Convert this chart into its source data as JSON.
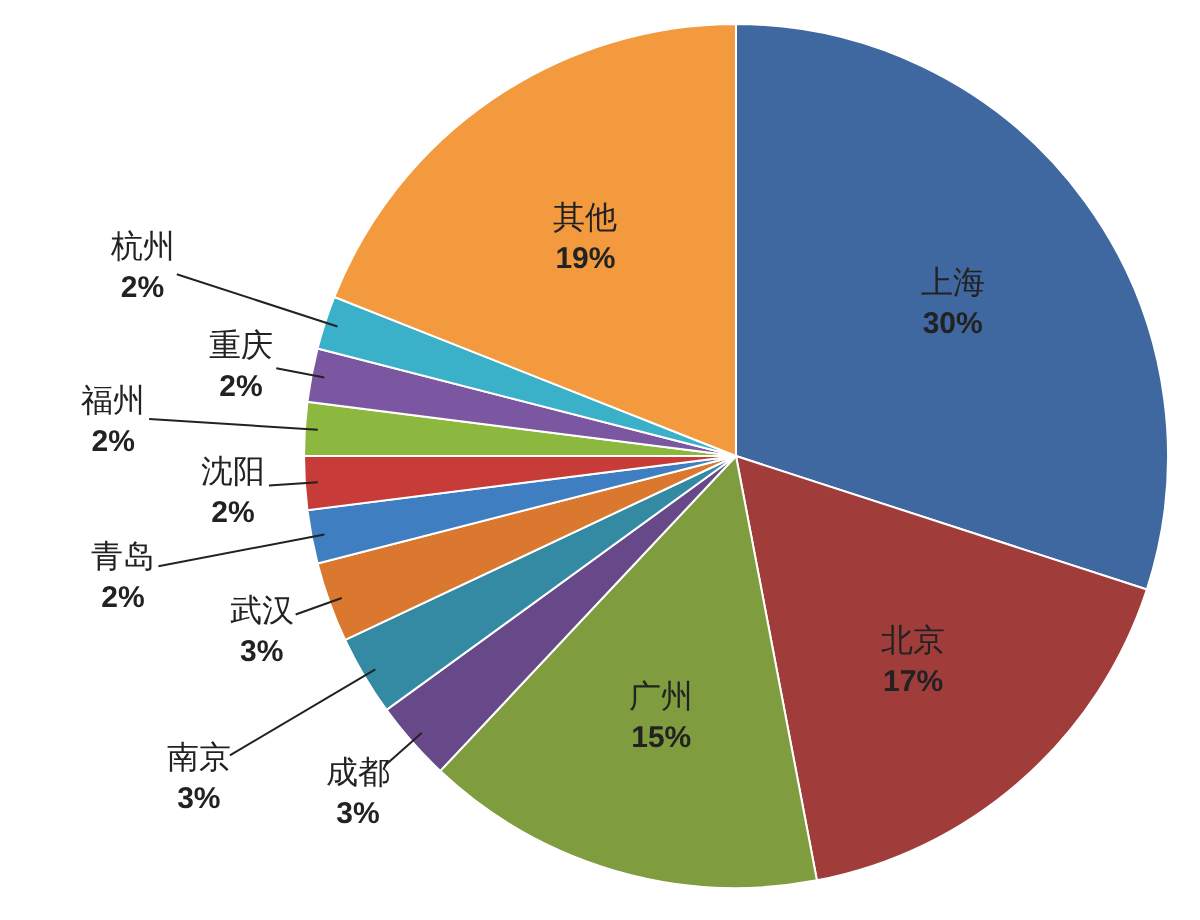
{
  "chart_data": {
    "type": "pie",
    "categories": [
      "上海",
      "北京",
      "广州",
      "成都",
      "南京",
      "武汉",
      "青岛",
      "沈阳",
      "福州",
      "重庆",
      "杭州",
      "其他"
    ],
    "values": [
      30,
      17,
      15,
      3,
      3,
      3,
      2,
      2,
      2,
      2,
      2,
      19
    ],
    "colors": [
      "#3f67a0",
      "#a03d3b",
      "#7f9d3f",
      "#67498a",
      "#348aa3",
      "#d9782e",
      "#3f7ec0",
      "#c73c39",
      "#8cb83f",
      "#7a57a0",
      "#3ab0c9",
      "#f39a3f"
    ],
    "value_labels": [
      "30%",
      "17%",
      "15%",
      "3%",
      "3%",
      "3%",
      "2%",
      "2%",
      "2%",
      "2%",
      "2%",
      "19%"
    ]
  }
}
